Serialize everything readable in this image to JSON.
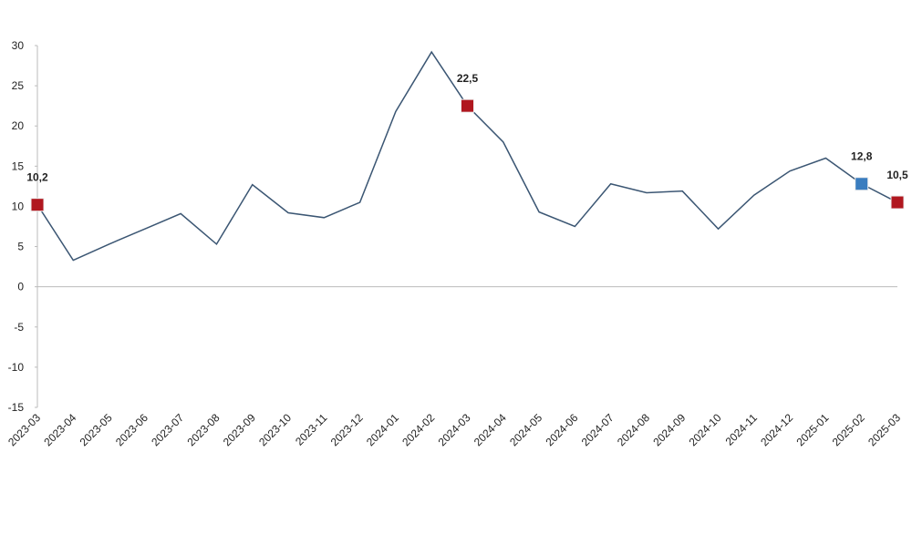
{
  "chart_data": {
    "type": "line",
    "categories": [
      "2023-03",
      "2023-04",
      "2023-05",
      "2023-06",
      "2023-07",
      "2023-08",
      "2023-09",
      "2023-10",
      "2023-11",
      "2023-12",
      "2024-01",
      "2024-02",
      "2024-03",
      "2024-04",
      "2024-05",
      "2024-06",
      "2024-07",
      "2024-08",
      "2024-09",
      "2024-10",
      "2024-11",
      "2024-12",
      "2025-01",
      "2025-02",
      "2025-03"
    ],
    "values": [
      10.2,
      3.3,
      5.3,
      7.2,
      9.1,
      5.3,
      12.7,
      9.2,
      8.6,
      10.5,
      21.8,
      29.2,
      22.5,
      18.0,
      9.3,
      7.5,
      12.8,
      11.7,
      11.9,
      7.2,
      11.4,
      14.4,
      16.0,
      12.8,
      10.5
    ],
    "value_labels": [
      "10,2",
      null,
      null,
      null,
      null,
      null,
      null,
      null,
      null,
      null,
      null,
      null,
      "22,5",
      null,
      null,
      null,
      null,
      null,
      null,
      null,
      null,
      null,
      null,
      "12,8",
      "10,5"
    ],
    "marker_colors": [
      "#b0171f",
      null,
      null,
      null,
      null,
      null,
      null,
      null,
      null,
      null,
      null,
      null,
      "#b0171f",
      null,
      null,
      null,
      null,
      null,
      null,
      null,
      null,
      null,
      null,
      "#3a7dbf",
      "#b0171f"
    ],
    "color": "#3b5673",
    "ylim": [
      -15,
      30
    ],
    "yticks": [
      -15,
      -10,
      -5,
      0,
      5,
      10,
      15,
      20,
      25,
      30
    ]
  }
}
